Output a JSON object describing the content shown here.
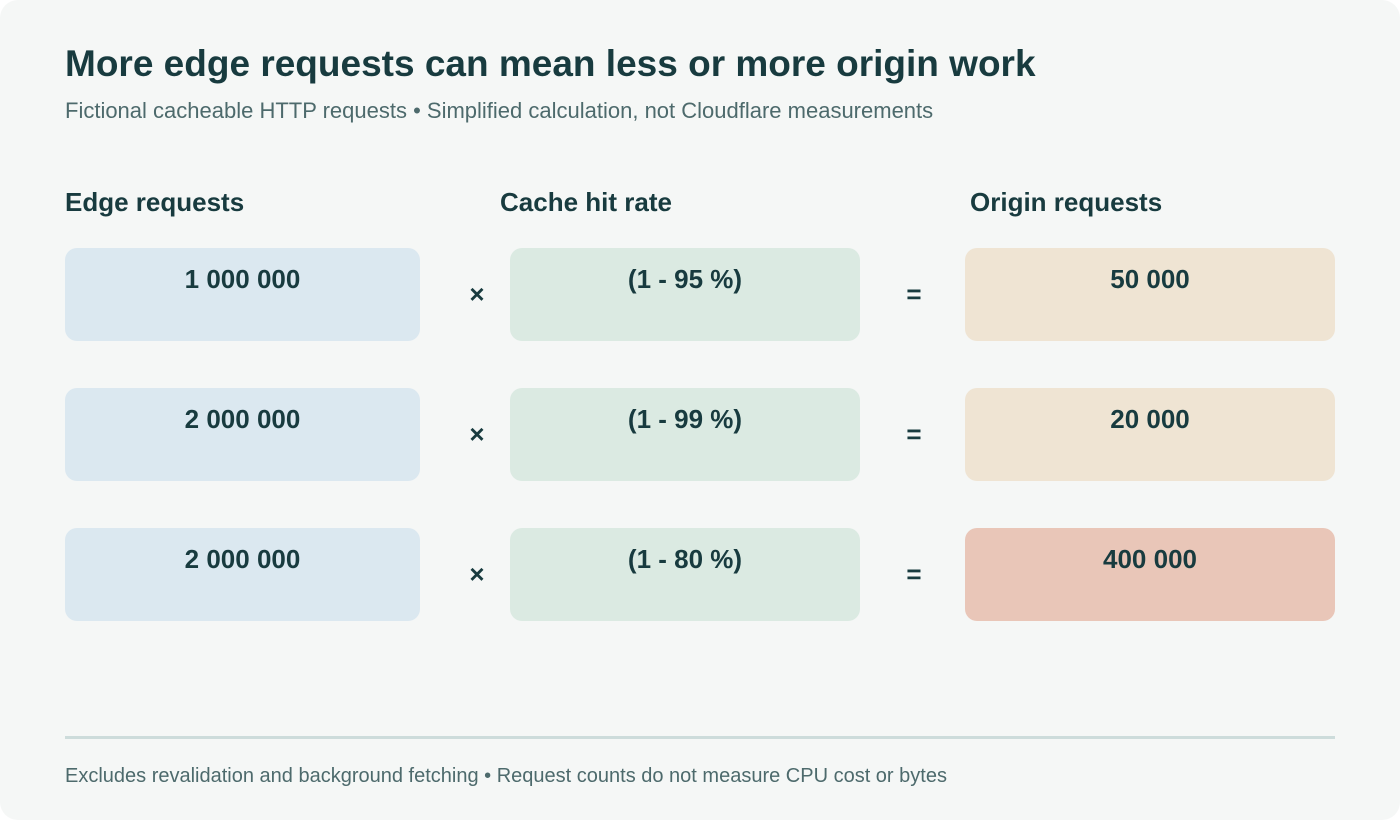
{
  "title": "More edge requests can mean less or more origin work",
  "subtitle": "Fictional cacheable HTTP requests • Simplified calculation, not Cloudflare measurements",
  "columns": {
    "edge": "Edge requests",
    "hit_rate": "Cache hit rate",
    "origin": "Origin requests"
  },
  "operators": {
    "times": "×",
    "equals": "="
  },
  "rows": [
    {
      "edge": "1 000 000",
      "hit_rate": "(1 - 95 %)",
      "origin": "50 000"
    },
    {
      "edge": "2 000 000",
      "hit_rate": "(1 - 99 %)",
      "origin": "20 000"
    },
    {
      "edge": "2 000 000",
      "hit_rate": "(1 - 80 %)",
      "origin": "400 000"
    }
  ],
  "colors": {
    "edge_box": "#dbe8f0",
    "hit_box": "#dbeae2",
    "origin_box": "#efe4d3",
    "origin_box_high": "#e9c6b8",
    "text": "#183b3f"
  },
  "footnote": "Excludes revalidation and background fetching • Request counts do not measure CPU cost or bytes"
}
